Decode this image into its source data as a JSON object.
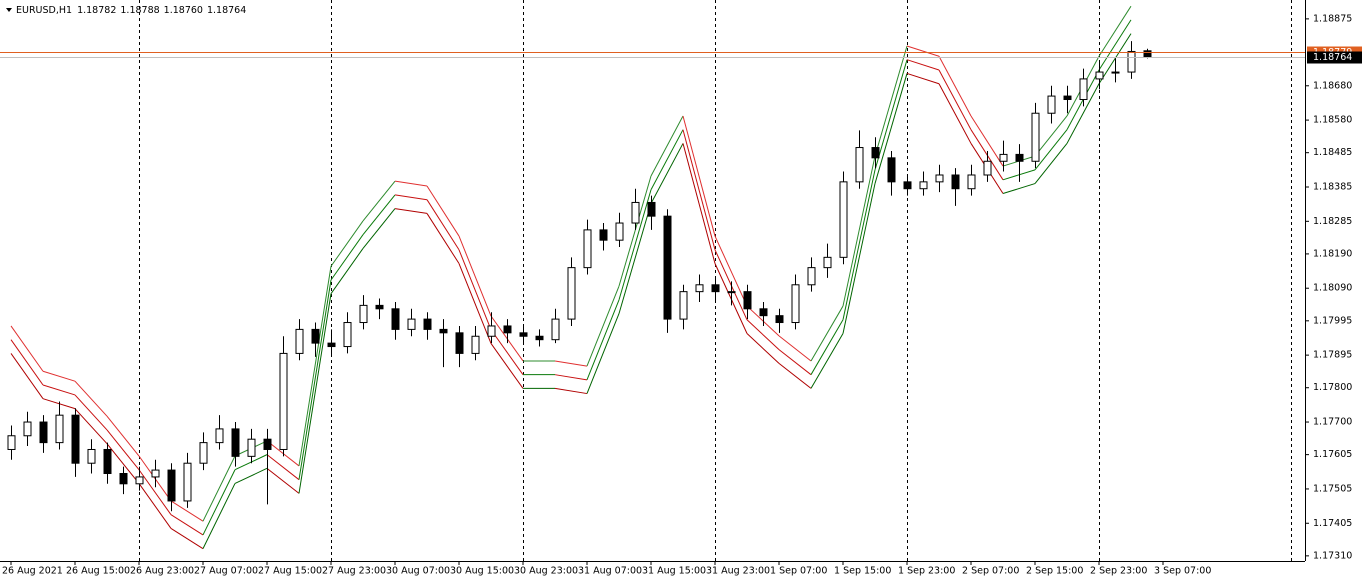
{
  "chart_data": {
    "type": "candlestick",
    "symbol": "EURUSD,H1",
    "ohlc_labels": [
      "1.18782",
      "1.18788",
      "1.18760",
      "1.18764"
    ],
    "ask": 1.18779,
    "ylim": [
      1.17295,
      1.1893
    ],
    "yticks": [
      1.18875,
      {
        "value": 1.1868,
        "label": "1.18680"
      },
      {
        "value": 1.1858,
        "label": "1.18580"
      },
      1.18485,
      1.18385,
      1.18285,
      {
        "value": 1.1819,
        "label": "1.18190"
      },
      {
        "value": 1.1809,
        "label": "1.18090"
      },
      1.17995,
      1.17895,
      {
        "value": 1.178,
        "label": "1.17800"
      },
      {
        "value": 1.177,
        "label": "1.17700"
      },
      1.17605,
      1.17505,
      1.17405,
      {
        "value": 1.1731,
        "label": "1.17310"
      }
    ],
    "xlim": [
      -0.6875,
      80.875
    ],
    "xticks": [
      {
        "value": 0,
        "label": "26 Aug 2021"
      },
      {
        "value": 4,
        "label": "26 Aug 15:00"
      },
      {
        "value": 8,
        "label": "26 Aug 23:00"
      },
      {
        "value": 12,
        "label": "27 Aug 07:00"
      },
      {
        "value": 16,
        "label": "27 Aug 15:00"
      },
      {
        "value": 20,
        "label": "27 Aug 23:00"
      },
      {
        "value": 24,
        "label": "30 Aug 07:00"
      },
      {
        "value": 28,
        "label": "30 Aug 15:00"
      },
      {
        "value": 32,
        "label": "30 Aug 23:00"
      },
      {
        "value": 36,
        "label": "31 Aug 07:00"
      },
      {
        "value": 40,
        "label": "31 Aug 15:00"
      },
      {
        "value": 44,
        "label": "31 Aug 23:00"
      },
      {
        "value": 48,
        "label": "1 Sep 07:00"
      },
      {
        "value": 52,
        "label": "1 Sep 15:00"
      },
      {
        "value": 56,
        "label": "1 Sep 23:00"
      },
      {
        "value": 60,
        "label": "2 Sep 07:00"
      },
      {
        "value": 64,
        "label": "2 Sep 15:00"
      },
      {
        "value": 68,
        "label": "2 Sep 23:00"
      },
      {
        "value": 72,
        "label": "3 Sep 07:00"
      }
    ],
    "separators": [
      8,
      20,
      32,
      44,
      56,
      68,
      80
    ],
    "candles": [
      [
        1.1762,
        1.1769,
        1.1759,
        1.1766
      ],
      [
        1.1766,
        1.1773,
        1.1763,
        1.177
      ],
      [
        1.177,
        1.1772,
        1.1761,
        1.1764
      ],
      [
        1.1764,
        1.1776,
        1.1762,
        1.1772
      ],
      [
        1.1772,
        1.1774,
        1.1754,
        1.1758
      ],
      [
        1.1758,
        1.1765,
        1.1755,
        1.1762
      ],
      [
        1.1762,
        1.1764,
        1.1752,
        1.1755
      ],
      [
        1.1755,
        1.1757,
        1.1749,
        1.1752
      ],
      [
        1.1752,
        1.1757,
        1.175,
        1.1754
      ],
      [
        1.1754,
        1.1759,
        1.1751,
        1.1756
      ],
      [
        1.1756,
        1.1758,
        1.1744,
        1.1747
      ],
      [
        1.1747,
        1.1761,
        1.1745,
        1.1758
      ],
      [
        1.1758,
        1.1767,
        1.1756,
        1.1764
      ],
      [
        1.1764,
        1.1772,
        1.1762,
        1.1768
      ],
      [
        1.1768,
        1.177,
        1.1757,
        1.176
      ],
      [
        1.176,
        1.1768,
        1.1758,
        1.1765
      ],
      [
        1.1765,
        1.1768,
        1.1746,
        1.1762
      ],
      [
        1.1762,
        1.1795,
        1.176,
        1.179
      ],
      [
        1.179,
        1.18,
        1.1788,
        1.1797
      ],
      [
        1.1797,
        1.1799,
        1.1789,
        1.1793
      ],
      [
        1.1793,
        1.1797,
        1.1789,
        1.1792
      ],
      [
        1.1792,
        1.1802,
        1.179,
        1.1799
      ],
      [
        1.1799,
        1.1807,
        1.1797,
        1.1804
      ],
      [
        1.1804,
        1.1806,
        1.18,
        1.1803
      ],
      [
        1.1803,
        1.1805,
        1.1794,
        1.1797
      ],
      [
        1.1797,
        1.1803,
        1.1795,
        1.18
      ],
      [
        1.18,
        1.1802,
        1.1794,
        1.1797
      ],
      [
        1.1797,
        1.18,
        1.1786,
        1.1796
      ],
      [
        1.1796,
        1.1798,
        1.1786,
        1.179
      ],
      [
        1.179,
        1.1798,
        1.1788,
        1.1795
      ],
      [
        1.1795,
        1.1802,
        1.1793,
        1.1798
      ],
      [
        1.1798,
        1.18,
        1.1793,
        1.1796
      ],
      [
        1.1796,
        1.1798,
        1.1793,
        1.1795
      ],
      [
        1.1795,
        1.1797,
        1.1792,
        1.1794
      ],
      [
        1.1794,
        1.1803,
        1.1793,
        1.18
      ],
      [
        1.18,
        1.1818,
        1.1798,
        1.1815
      ],
      [
        1.1815,
        1.1829,
        1.1813,
        1.1826
      ],
      [
        1.1826,
        1.1828,
        1.182,
        1.1823
      ],
      [
        1.1823,
        1.1831,
        1.1821,
        1.1828
      ],
      [
        1.1828,
        1.1838,
        1.1826,
        1.1834
      ],
      [
        1.1834,
        1.1836,
        1.1826,
        1.183
      ],
      [
        1.183,
        1.1832,
        1.1796,
        1.18
      ],
      [
        1.18,
        1.181,
        1.1797,
        1.1808
      ],
      [
        1.1808,
        1.1813,
        1.1805,
        1.181
      ],
      [
        1.181,
        1.1812,
        1.1805,
        1.1808
      ],
      [
        1.1808,
        1.1811,
        1.1804,
        1.1808
      ],
      [
        1.1808,
        1.181,
        1.18,
        1.1803
      ],
      [
        1.1803,
        1.1805,
        1.1798,
        1.1801
      ],
      [
        1.1801,
        1.1803,
        1.1796,
        1.1799
      ],
      [
        1.1799,
        1.1813,
        1.1797,
        1.181
      ],
      [
        1.181,
        1.1818,
        1.1808,
        1.1815
      ],
      [
        1.1815,
        1.1822,
        1.1812,
        1.1818
      ],
      [
        1.1818,
        1.1843,
        1.1816,
        1.184
      ],
      [
        1.184,
        1.1855,
        1.1838,
        1.185
      ],
      [
        1.185,
        1.1853,
        1.1844,
        1.1847
      ],
      [
        1.1847,
        1.1849,
        1.1836,
        1.184
      ],
      [
        1.184,
        1.1842,
        1.1836,
        1.1838
      ],
      [
        1.1838,
        1.1843,
        1.1836,
        1.184
      ],
      [
        1.184,
        1.1845,
        1.1837,
        1.1842
      ],
      [
        1.1842,
        1.1844,
        1.1833,
        1.1838
      ],
      [
        1.1838,
        1.1845,
        1.1836,
        1.1842
      ],
      [
        1.1842,
        1.1849,
        1.184,
        1.1846
      ],
      [
        1.1846,
        1.1852,
        1.1843,
        1.1848
      ],
      [
        1.1848,
        1.1851,
        1.184,
        1.1846
      ],
      [
        1.1846,
        1.1863,
        1.1844,
        1.186
      ],
      [
        1.186,
        1.1868,
        1.1857,
        1.1865
      ],
      [
        1.1865,
        1.1868,
        1.186,
        1.1864
      ],
      [
        1.1864,
        1.1873,
        1.1862,
        1.187
      ],
      [
        1.187,
        1.1875,
        1.1867,
        1.1872
      ],
      [
        1.1872,
        1.1876,
        1.1869,
        1.1872
      ],
      [
        1.1872,
        1.1881,
        1.187,
        1.1878
      ],
      [
        1.18782,
        1.18788,
        1.1876,
        1.18764
      ]
    ],
    "ribbon_x": [
      0,
      2,
      4,
      6,
      8,
      10,
      12,
      14,
      16,
      18,
      20,
      22,
      24,
      26,
      28,
      30,
      32,
      34,
      36,
      38,
      40,
      42,
      44,
      46,
      48,
      50,
      52,
      54,
      56,
      58,
      60,
      62,
      64,
      66,
      68,
      70
    ],
    "ribbons": [
      {
        "up_color": "#2e8b2e",
        "down_color": "#e03030",
        "values": [
          1.1798,
          1.17848,
          1.17819,
          1.17717,
          1.17601,
          1.1747,
          1.17411,
          1.17601,
          1.17645,
          1.17572,
          1.18154,
          1.18286,
          1.18402,
          1.18388,
          1.18242,
          1.18009,
          1.17878,
          1.17878,
          1.17863,
          1.18096,
          1.18417,
          1.18592,
          1.18242,
          1.18038,
          1.17951,
          1.17878,
          1.18038,
          1.18475,
          1.18796,
          1.18766,
          1.18592,
          1.18446,
          1.18475,
          1.18592,
          1.18766,
          1.18912
        ]
      },
      {
        "up_color": "#0a7a0a",
        "down_color": "#c81010",
        "values": [
          1.1794,
          1.17808,
          1.17779,
          1.17677,
          1.17561,
          1.1743,
          1.17371,
          1.17561,
          1.17605,
          1.17532,
          1.18114,
          1.18246,
          1.18362,
          1.18348,
          1.18202,
          1.17969,
          1.17838,
          1.17838,
          1.17823,
          1.18056,
          1.18377,
          1.18552,
          1.18202,
          1.17998,
          1.17911,
          1.17838,
          1.17998,
          1.18435,
          1.18756,
          1.18726,
          1.18552,
          1.18406,
          1.18435,
          1.18552,
          1.18726,
          1.18872
        ]
      },
      {
        "up_color": "#006400",
        "down_color": "#b00000",
        "values": [
          1.179,
          1.17768,
          1.17739,
          1.17637,
          1.17521,
          1.1739,
          1.17331,
          1.17521,
          1.17565,
          1.17492,
          1.18074,
          1.18206,
          1.18322,
          1.18308,
          1.18162,
          1.17929,
          1.17798,
          1.17798,
          1.17783,
          1.18016,
          1.18337,
          1.18512,
          1.18162,
          1.17958,
          1.17871,
          1.17798,
          1.17958,
          1.18395,
          1.18716,
          1.18686,
          1.18512,
          1.18366,
          1.18395,
          1.18512,
          1.18686,
          1.18832
        ]
      }
    ],
    "bull_color": "#ffffff",
    "bear_color": "#000000",
    "ask_color": "#e06020"
  }
}
